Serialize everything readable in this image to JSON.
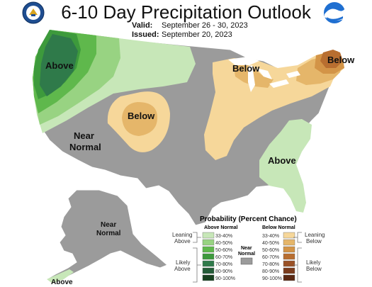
{
  "header": {
    "title": "6-10 Day Precipitation Outlook",
    "valid_label": "Valid:",
    "valid_value": "September 26 - 30, 2023",
    "issued_label": "Issued:",
    "issued_value": "September 20, 2023"
  },
  "logos": {
    "left": "commerce-seal",
    "right": "noaa-logo",
    "noaa_text": "NOAA"
  },
  "map_labels": {
    "above_northwest": "Above",
    "below_rockies": "Below",
    "below_great_lakes": "Below",
    "below_maine": "Below",
    "near_normal_west": "Near Normal",
    "near_normal_west_line1": "Near",
    "near_normal_west_line2": "Normal",
    "above_southeast": "Above",
    "near_normal_alaska_line1": "Near",
    "near_normal_alaska_line2": "Normal",
    "above_alaska": "Above"
  },
  "legend": {
    "title": "Probability (Percent Chance)",
    "above_header": "Above Normal",
    "below_header": "Below Normal",
    "near_header_line1": "Near",
    "near_header_line2": "Normal",
    "leaning_above_line1": "Leaning",
    "leaning_above_line2": "Above",
    "likely_above_line1": "Likely",
    "likely_above_line2": "Above",
    "leaning_below_line1": "Leaning",
    "leaning_below_line2": "Below",
    "likely_below_line1": "Likely",
    "likely_below_line2": "Below",
    "above_bins": [
      {
        "label": "33-40%",
        "color": "#c7e7b8"
      },
      {
        "label": "40-50%",
        "color": "#98d382"
      },
      {
        "label": "50-60%",
        "color": "#5fb84c"
      },
      {
        "label": "60-70%",
        "color": "#3d9a3c"
      },
      {
        "label": "70-80%",
        "color": "#2f7a4a"
      },
      {
        "label": "80-90%",
        "color": "#245c38"
      },
      {
        "label": "90-100%",
        "color": "#17401f"
      }
    ],
    "below_bins": [
      {
        "label": "33-40%",
        "color": "#f6d79a"
      },
      {
        "label": "40-50%",
        "color": "#e5b66a"
      },
      {
        "label": "50-60%",
        "color": "#d39447"
      },
      {
        "label": "60-70%",
        "color": "#b86e30"
      },
      {
        "label": "70-80%",
        "color": "#9a5126"
      },
      {
        "label": "80-90%",
        "color": "#7a3b1c"
      },
      {
        "label": "90-100%",
        "color": "#5a2812"
      }
    ],
    "near_color": "#9b9b9b"
  }
}
